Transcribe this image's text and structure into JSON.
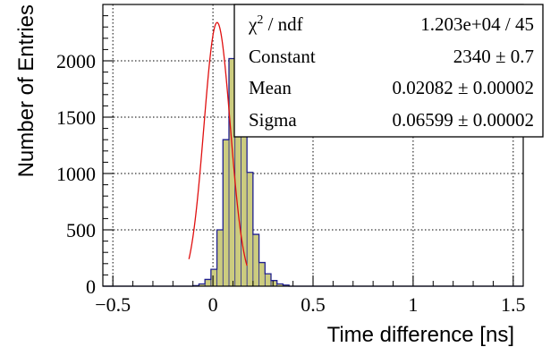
{
  "chart_data": {
    "type": "bar",
    "xlabel": "Time difference [ns]",
    "ylabel": "Number of Entries",
    "xlim": [
      -0.55,
      1.55
    ],
    "ylim": [
      0,
      2500
    ],
    "grid": true,
    "x_ticks": [
      -0.5,
      0,
      0.5,
      1,
      1.5
    ],
    "x_tick_labels": [
      "−0.5",
      "0",
      "0.5",
      "1",
      "1.5"
    ],
    "y_ticks": [
      0,
      500,
      1000,
      1500,
      2000
    ],
    "y_tick_labels": [
      "0",
      "500",
      "1000",
      "1500",
      "2000"
    ],
    "bin_width": 0.03,
    "bin_edges_start": -0.1,
    "histogram_values": [
      5,
      20,
      60,
      150,
      500,
      1300,
      2020,
      2360,
      1970,
      1010,
      460,
      210,
      110,
      50,
      20,
      10
    ],
    "fit": {
      "function": "gaus",
      "constant": 2340,
      "mean": 0.02082,
      "sigma": 0.06599
    },
    "colors": {
      "fill": "#cccc7f",
      "outline": "#1f1f8f",
      "fit_line": "#e01010"
    },
    "stats": {
      "position": "top-right",
      "rows": [
        {
          "label_main": "χ",
          "label_sup": "2",
          "label_rest": " / ndf",
          "value": "1.203e+04 / 45"
        },
        {
          "label_main": "Constant",
          "label_sup": "",
          "label_rest": "",
          "value": "2340 ± 0.7"
        },
        {
          "label_main": "Mean",
          "label_sup": "",
          "label_rest": "",
          "value": "0.02082 ± 0.00002"
        },
        {
          "label_main": "Sigma",
          "label_sup": "",
          "label_rest": "",
          "value": "0.06599 ± 0.00002"
        }
      ]
    }
  }
}
